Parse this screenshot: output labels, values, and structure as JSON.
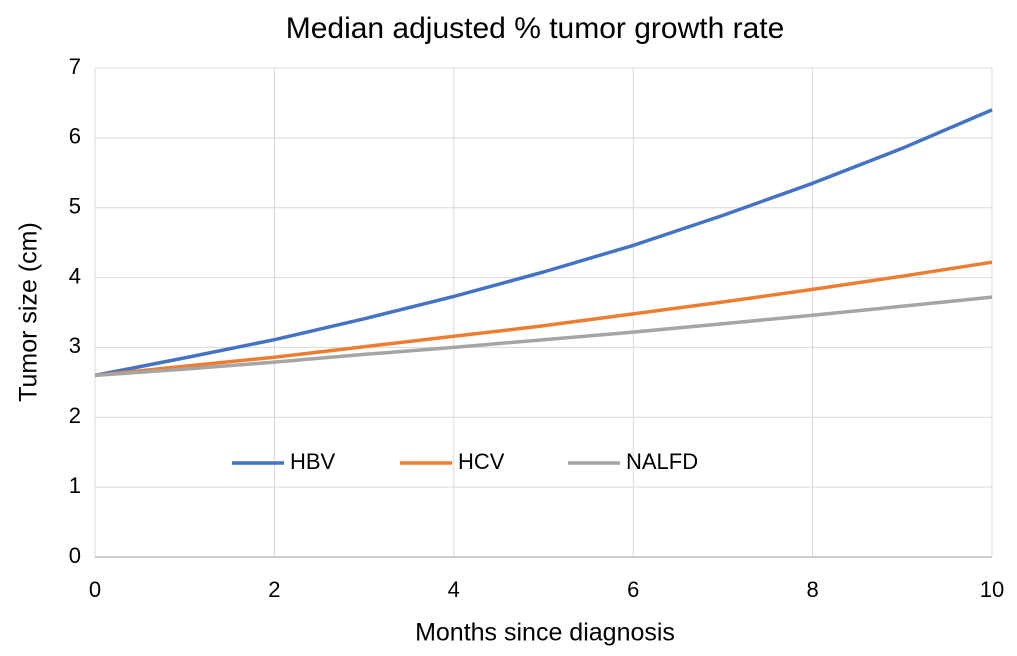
{
  "chart_data": {
    "type": "line",
    "title": "Median adjusted % tumor growth rate",
    "x_label": "Months since diagnosis",
    "y_label": "Tumor size (cm)",
    "x": [
      0,
      1,
      2,
      3,
      4,
      5,
      6,
      7,
      8,
      9,
      10
    ],
    "series": [
      {
        "name": "HBV",
        "color": "#4472c4",
        "values": [
          2.6,
          2.85,
          3.11,
          3.41,
          3.73,
          4.08,
          4.46,
          4.89,
          5.35,
          5.85,
          6.4
        ]
      },
      {
        "name": "HCV",
        "color": "#ed7d31",
        "values": [
          2.6,
          2.73,
          2.86,
          3.01,
          3.16,
          3.31,
          3.48,
          3.65,
          3.83,
          4.02,
          4.22
        ]
      },
      {
        "name": "NALFD",
        "color": "#a5a5a5",
        "values": [
          2.6,
          2.69,
          2.79,
          2.9,
          3.0,
          3.11,
          3.22,
          3.34,
          3.46,
          3.59,
          3.72
        ]
      }
    ],
    "xlim": [
      0,
      10
    ],
    "xticks": [
      0,
      2,
      4,
      6,
      8,
      10
    ],
    "ylim": [
      0,
      7
    ],
    "yticks": [
      0,
      1,
      2,
      3,
      4,
      5,
      6,
      7
    ],
    "grid": true,
    "legend": "inside-lower-center"
  }
}
